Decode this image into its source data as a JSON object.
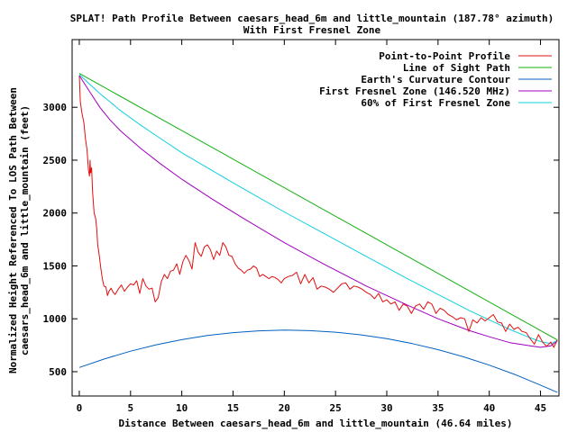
{
  "chart_data": {
    "type": "line",
    "title": "SPLAT! Path Profile Between caesars_head_6m and little_mountain (187.78° azimuth)",
    "subtitle": "With First Fresnel Zone",
    "xlabel": "Distance Between caesars_head_6m and little_mountain (46.64 miles)",
    "ylabel_lines": [
      "Normalized Height Referenced To LOS Path Between",
      "caesars_head_6m and little_mountain (feet)"
    ],
    "xlim": [
      -0.7,
      46.8
    ],
    "ylim": [
      270,
      3640
    ],
    "x_ticks": [
      0,
      5,
      10,
      15,
      20,
      25,
      30,
      35,
      40,
      45
    ],
    "y_ticks": [
      500,
      1000,
      1500,
      2000,
      2500,
      3000
    ],
    "legend_position": "top-right",
    "series": [
      {
        "name": "Point-to-Point Profile",
        "color": "#e01010",
        "x": [
          0,
          0.1,
          0.25,
          0.45,
          0.6,
          0.75,
          0.9,
          1.0,
          1.05,
          1.1,
          1.2,
          1.3,
          1.45,
          1.6,
          1.7,
          1.8,
          1.95,
          2.1,
          2.25,
          2.4,
          2.6,
          2.75,
          2.9,
          3.1,
          3.3,
          3.5,
          3.8,
          4.1,
          4.4,
          4.7,
          5.0,
          5.3,
          5.6,
          5.9,
          6.2,
          6.5,
          6.8,
          7.1,
          7.4,
          7.7,
          8.0,
          8.3,
          8.6,
          8.9,
          9.2,
          9.5,
          9.8,
          10.1,
          10.4,
          10.7,
          11.0,
          11.3,
          11.6,
          11.9,
          12.2,
          12.5,
          12.8,
          13.1,
          13.4,
          13.7,
          14.0,
          14.3,
          14.6,
          14.9,
          15.2,
          15.5,
          15.8,
          16.1,
          16.4,
          16.7,
          17.0,
          17.3,
          17.6,
          17.9,
          18.2,
          18.5,
          18.8,
          19.1,
          19.4,
          19.7,
          20.0,
          20.4,
          20.8,
          21.2,
          21.6,
          22.0,
          22.4,
          22.8,
          23.2,
          23.6,
          24.0,
          24.4,
          24.8,
          25.2,
          25.6,
          26.0,
          26.4,
          26.8,
          27.2,
          27.6,
          28.0,
          28.4,
          28.8,
          29.2,
          29.6,
          30.0,
          30.4,
          30.8,
          31.2,
          31.6,
          32.0,
          32.4,
          32.8,
          33.2,
          33.6,
          34.0,
          34.4,
          34.8,
          35.2,
          35.6,
          36.0,
          36.4,
          36.8,
          37.2,
          37.6,
          38.0,
          38.4,
          38.8,
          39.2,
          39.6,
          40.0,
          40.4,
          40.8,
          41.2,
          41.6,
          42.0,
          42.4,
          42.8,
          43.2,
          43.6,
          44.0,
          44.4,
          44.8,
          45.2,
          45.6,
          46.0,
          46.3,
          46.64
        ],
        "y": [
          3300,
          3050,
          2950,
          2850,
          2700,
          2600,
          2400,
          2350,
          2500,
          2380,
          2430,
          2200,
          2000,
          1950,
          1850,
          1700,
          1600,
          1480,
          1380,
          1310,
          1300,
          1220,
          1260,
          1290,
          1250,
          1230,
          1280,
          1320,
          1260,
          1300,
          1330,
          1320,
          1360,
          1240,
          1380,
          1310,
          1280,
          1290,
          1160,
          1200,
          1350,
          1420,
          1380,
          1450,
          1460,
          1520,
          1420,
          1540,
          1600,
          1550,
          1470,
          1720,
          1630,
          1590,
          1680,
          1700,
          1650,
          1560,
          1640,
          1600,
          1720,
          1680,
          1600,
          1590,
          1520,
          1480,
          1460,
          1430,
          1460,
          1470,
          1500,
          1480,
          1400,
          1420,
          1400,
          1380,
          1400,
          1390,
          1370,
          1340,
          1380,
          1400,
          1410,
          1440,
          1330,
          1420,
          1340,
          1390,
          1280,
          1310,
          1300,
          1280,
          1250,
          1290,
          1330,
          1340,
          1280,
          1310,
          1300,
          1280,
          1250,
          1230,
          1190,
          1240,
          1160,
          1180,
          1140,
          1160,
          1080,
          1140,
          1120,
          1050,
          1120,
          1140,
          1090,
          1160,
          1140,
          1050,
          1100,
          1080,
          1040,
          1020,
          990,
          1010,
          1000,
          880,
          990,
          960,
          1010,
          980,
          1010,
          1040,
          970,
          960,
          880,
          950,
          900,
          920,
          880,
          870,
          810,
          760,
          850,
          780,
          740,
          780,
          730,
          800
        ]
      },
      {
        "name": "Line of Sight Path",
        "color": "#10b010",
        "x": [
          0,
          46.64
        ],
        "y": [
          3320,
          800
        ]
      },
      {
        "name": "Earth's Curvature Contour",
        "color": "#0060c0",
        "x": [
          0,
          2.5,
          5,
          7.5,
          10,
          12.5,
          15,
          17.5,
          20,
          22.5,
          25,
          27.5,
          30,
          32.5,
          35,
          37.5,
          40,
          42.5,
          45,
          46.64
        ],
        "y": [
          540,
          622,
          694,
          754,
          803,
          842,
          869,
          886,
          893,
          888,
          873,
          848,
          812,
          765,
          708,
          640,
          562,
          473,
          373,
          305
        ]
      },
      {
        "name": "First Fresnel Zone (146.520 MHz)",
        "color": "#a000c0",
        "x": [
          0,
          1,
          2,
          3,
          4,
          6,
          8,
          10,
          13,
          16,
          20,
          24,
          28,
          32,
          35,
          38,
          40,
          42,
          44,
          45,
          46,
          46.64
        ],
        "y": [
          3300,
          3150,
          3000,
          2880,
          2780,
          2610,
          2460,
          2320,
          2130,
          1950,
          1720,
          1510,
          1310,
          1130,
          1000,
          890,
          830,
          775,
          745,
          730,
          745,
          790
        ]
      },
      {
        "name": "60% of First Fresnel Zone",
        "color": "#10d0e0",
        "x": [
          0,
          1,
          2,
          3,
          4,
          6,
          8,
          10,
          13,
          16,
          20,
          24,
          28,
          32,
          35,
          38,
          40,
          42,
          44,
          45,
          46,
          46.64
        ],
        "y": [
          3310,
          3220,
          3130,
          3050,
          2970,
          2830,
          2700,
          2570,
          2400,
          2230,
          2010,
          1800,
          1590,
          1380,
          1230,
          1080,
          990,
          900,
          820,
          785,
          765,
          795
        ]
      }
    ]
  }
}
